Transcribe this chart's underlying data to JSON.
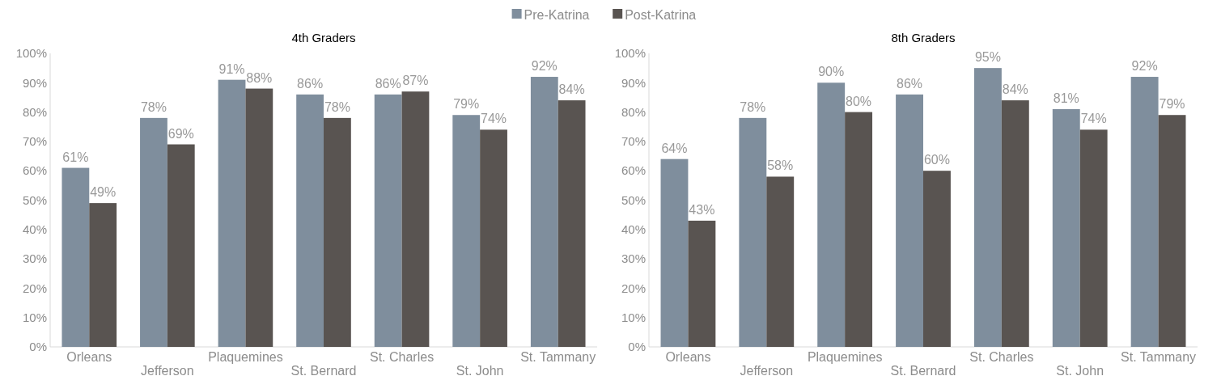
{
  "chart_data": [
    {
      "type": "bar",
      "title": "4th Graders",
      "categories": [
        "Orleans",
        "Jefferson",
        "Plaquemines",
        "St. Bernard",
        "St. Charles",
        "St. John",
        "St. Tammany"
      ],
      "series": [
        {
          "name": "Pre-Katrina",
          "color": "#7f8e9d",
          "values": [
            61,
            78,
            91,
            86,
            86,
            79,
            92
          ],
          "value_labels": [
            "61%",
            "78%",
            "91%",
            "86%",
            "86%",
            "79%",
            "92%"
          ]
        },
        {
          "name": "Post-Katrina",
          "color": "#595451",
          "values": [
            49,
            69,
            88,
            78,
            87,
            74,
            84
          ],
          "value_labels": [
            "49%",
            "69%",
            "88%",
            "78%",
            "87%",
            "74%",
            "84%"
          ]
        }
      ],
      "ylim": [
        0,
        100
      ],
      "yticks": [
        {
          "value": 0,
          "label": "0%"
        },
        {
          "value": 10,
          "label": "10%"
        },
        {
          "value": 20,
          "label": "20%"
        },
        {
          "value": 30,
          "label": "30%"
        },
        {
          "value": 40,
          "label": "40%"
        },
        {
          "value": 50,
          "label": "50%"
        },
        {
          "value": 60,
          "label": "60%"
        },
        {
          "value": 70,
          "label": "70%"
        },
        {
          "value": 80,
          "label": "80%"
        },
        {
          "value": 90,
          "label": "90%"
        },
        {
          "value": 100,
          "label": "100%"
        }
      ],
      "legend": "top"
    },
    {
      "type": "bar",
      "title": "8th Graders",
      "categories": [
        "Orleans",
        "Jefferson",
        "Plaquemines",
        "St. Bernard",
        "St. Charles",
        "St. John",
        "St. Tammany"
      ],
      "series": [
        {
          "color": "#7f8e9d",
          "values": [
            64,
            78,
            90,
            86,
            95,
            81,
            92
          ],
          "value_labels": [
            "64%",
            "78%",
            "90%",
            "86%",
            "95%",
            "81%",
            "92%"
          ]
        },
        {
          "color": "#595451",
          "values": [
            43,
            58,
            80,
            60,
            84,
            74,
            79
          ],
          "value_labels": [
            "43%",
            "58%",
            "80%",
            "60%",
            "84%",
            "74%",
            "79%"
          ]
        }
      ],
      "ylim": [
        0,
        100
      ],
      "yticks": [
        {
          "value": 0,
          "label": "0%"
        },
        {
          "value": 10,
          "label": "10%"
        },
        {
          "value": 20,
          "label": "20%"
        },
        {
          "value": 30,
          "label": "30%"
        },
        {
          "value": 40,
          "label": "40%"
        },
        {
          "value": 50,
          "label": "50%"
        },
        {
          "value": 60,
          "label": "60%"
        },
        {
          "value": 70,
          "label": "70%"
        },
        {
          "value": 80,
          "label": "80%"
        },
        {
          "value": 90,
          "label": "90%"
        },
        {
          "value": 100,
          "label": "100%"
        }
      ]
    }
  ]
}
